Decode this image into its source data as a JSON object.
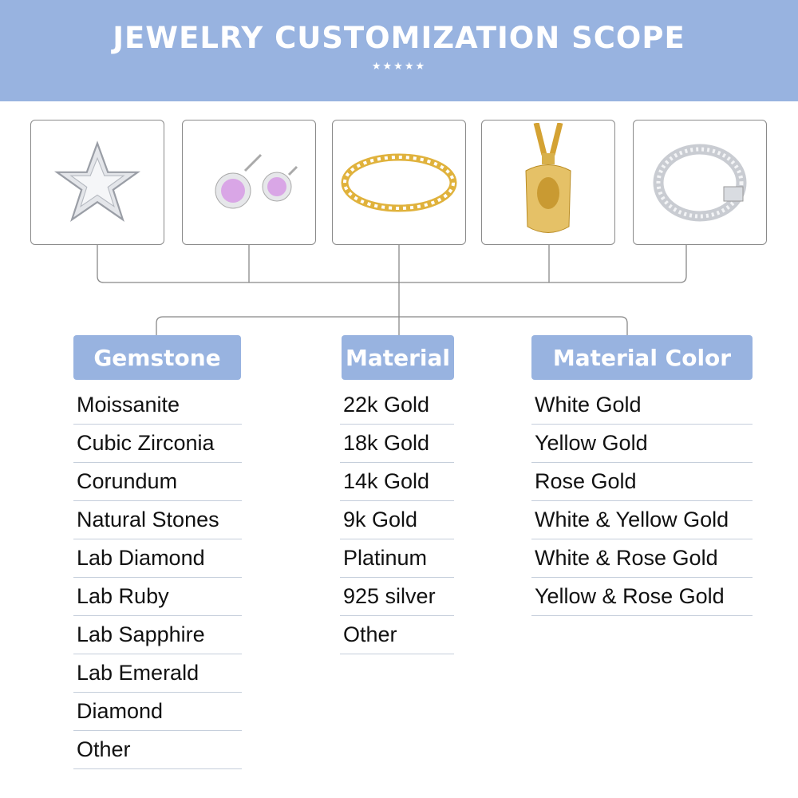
{
  "header": {
    "title": "JEWELRY CUSTOMIZATION SCOPE",
    "stars": "★★★★★"
  },
  "colors": {
    "accent": "#98b3e0",
    "text": "#111111",
    "divider": "#c5cedb"
  },
  "products": [
    "star-pendant-icon",
    "pink-stud-earrings-icon",
    "gold-tennis-bracelet-icon",
    "gold-jesus-pendant-icon",
    "silver-cuban-chain-icon"
  ],
  "categories": [
    {
      "title": "Gemstone",
      "items": [
        "Moissanite",
        "Cubic Zirconia",
        "Corundum",
        "Natural Stones",
        "Lab Diamond",
        "Lab Ruby",
        "Lab Sapphire",
        "Lab Emerald",
        "Diamond",
        "Other"
      ]
    },
    {
      "title": "Material",
      "items": [
        "22k Gold",
        "18k Gold",
        "14k Gold",
        "9k Gold",
        "Platinum",
        "925 silver",
        "Other"
      ]
    },
    {
      "title": "Material Color",
      "items": [
        "White Gold",
        "Yellow Gold",
        "Rose Gold",
        "White & Yellow Gold",
        "White & Rose Gold",
        "Yellow  & Rose Gold"
      ]
    }
  ]
}
